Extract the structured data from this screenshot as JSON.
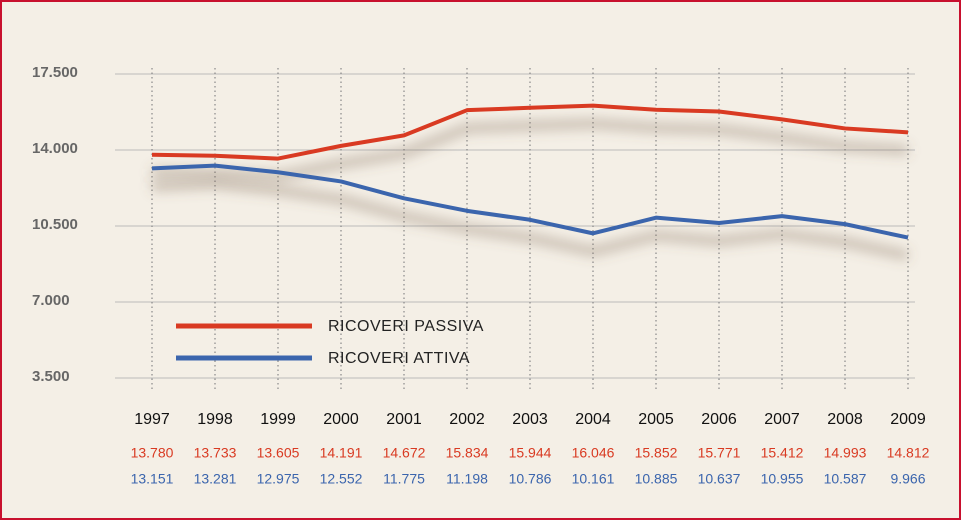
{
  "chart_data": {
    "type": "line",
    "categories": [
      "1997",
      "1998",
      "1999",
      "2000",
      "2001",
      "2002",
      "2003",
      "2004",
      "2005",
      "2006",
      "2007",
      "2008",
      "2009"
    ],
    "series": [
      {
        "name": "RICOVERI PASSIVA",
        "color": "#d93a22",
        "values": [
          13780,
          13733,
          13605,
          14191,
          14672,
          15834,
          15944,
          16046,
          15852,
          15771,
          15412,
          14993,
          14812
        ],
        "value_labels": [
          "13.780",
          "13.733",
          "13.605",
          "14.191",
          "14.672",
          "15.834",
          "15.944",
          "16.046",
          "15.852",
          "15.771",
          "15.412",
          "14.993",
          "14.812"
        ]
      },
      {
        "name": "RICOVERI ATTIVA",
        "color": "#3b65ad",
        "values": [
          13151,
          13281,
          12975,
          12552,
          11775,
          11198,
          10786,
          10161,
          10885,
          10637,
          10955,
          10587,
          9966
        ],
        "value_labels": [
          "13.151",
          "13.281",
          "12.975",
          "12.552",
          "11.775",
          "11.198",
          "10.786",
          "10.161",
          "10.885",
          "10.637",
          "10.955",
          "10.587",
          "9.966"
        ]
      }
    ],
    "ylim": [
      3500,
      17500
    ],
    "yticks": [
      {
        "value": 3500,
        "label": "3.500"
      },
      {
        "value": 7000,
        "label": "7.000"
      },
      {
        "value": 10500,
        "label": "10.500"
      },
      {
        "value": 14000,
        "label": "14.000"
      },
      {
        "value": 17500,
        "label": "17.500"
      }
    ],
    "grid": true,
    "legend": "lower-left"
  }
}
